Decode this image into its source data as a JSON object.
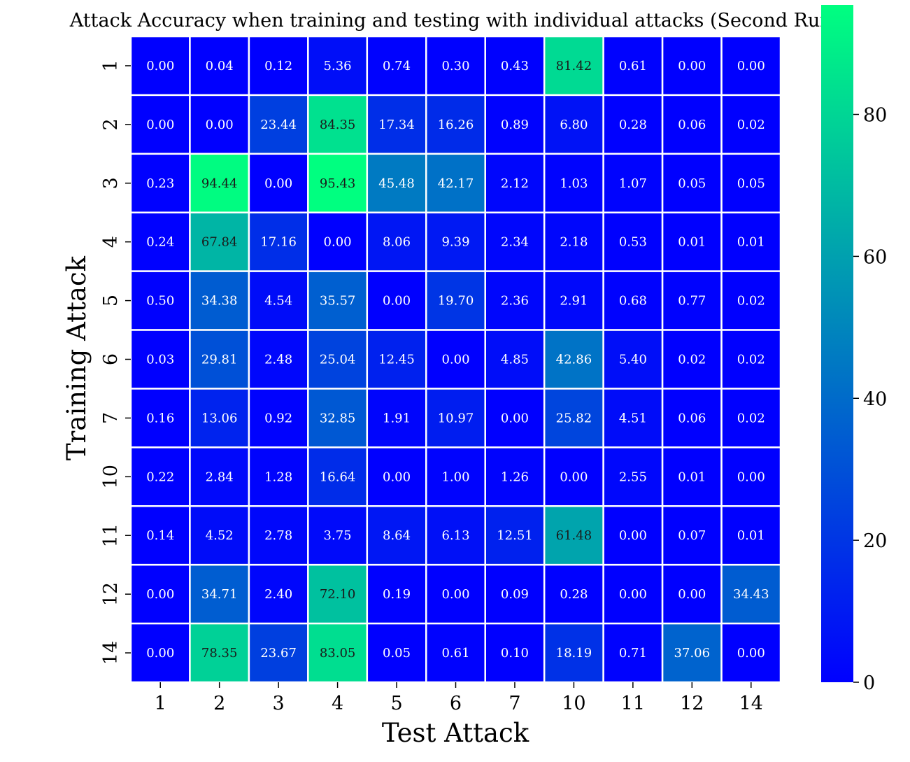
{
  "chart_data": {
    "type": "heatmap",
    "title": "Attack Accuracy when training and testing with individual attacks (Second Run)",
    "xlabel": "Test Attack",
    "ylabel": "Training Attack",
    "x_categories": [
      "1",
      "2",
      "3",
      "4",
      "5",
      "6",
      "7",
      "10",
      "11",
      "12",
      "14"
    ],
    "y_categories": [
      "1",
      "2",
      "3",
      "4",
      "5",
      "6",
      "7",
      "10",
      "11",
      "12",
      "14"
    ],
    "values": [
      [
        "0.00",
        "0.04",
        "0.12",
        "5.36",
        "0.74",
        "0.30",
        "0.43",
        "81.42",
        "0.61",
        "0.00",
        "0.00"
      ],
      [
        "0.00",
        "0.00",
        "23.44",
        "84.35",
        "17.34",
        "16.26",
        "0.89",
        "6.80",
        "0.28",
        "0.06",
        "0.02"
      ],
      [
        "0.23",
        "94.44",
        "0.00",
        "95.43",
        "45.48",
        "42.17",
        "2.12",
        "1.03",
        "1.07",
        "0.05",
        "0.05"
      ],
      [
        "0.24",
        "67.84",
        "17.16",
        "0.00",
        "8.06",
        "9.39",
        "2.34",
        "2.18",
        "0.53",
        "0.01",
        "0.01"
      ],
      [
        "0.50",
        "34.38",
        "4.54",
        "35.57",
        "0.00",
        "19.70",
        "2.36",
        "2.91",
        "0.68",
        "0.77",
        "0.02"
      ],
      [
        "0.03",
        "29.81",
        "2.48",
        "25.04",
        "12.45",
        "0.00",
        "4.85",
        "42.86",
        "5.40",
        "0.02",
        "0.02"
      ],
      [
        "0.16",
        "13.06",
        "0.92",
        "32.85",
        "1.91",
        "10.97",
        "0.00",
        "25.82",
        "4.51",
        "0.06",
        "0.02"
      ],
      [
        "0.22",
        "2.84",
        "1.28",
        "16.64",
        "0.00",
        "1.00",
        "1.26",
        "0.00",
        "2.55",
        "0.01",
        "0.00"
      ],
      [
        "0.14",
        "4.52",
        "2.78",
        "3.75",
        "8.64",
        "6.13",
        "12.51",
        "61.48",
        "0.00",
        "0.07",
        "0.01"
      ],
      [
        "0.00",
        "34.71",
        "2.40",
        "72.10",
        "0.19",
        "0.00",
        "0.09",
        "0.28",
        "0.00",
        "0.00",
        "34.43"
      ],
      [
        "0.00",
        "78.35",
        "23.67",
        "83.05",
        "0.05",
        "0.61",
        "0.10",
        "18.19",
        "0.71",
        "37.06",
        "0.00"
      ]
    ],
    "colorbar": {
      "ticks": [
        "0",
        "20",
        "40",
        "60",
        "80"
      ],
      "min": 0,
      "max": 95.43,
      "colormap": "winter",
      "color_low": "#0000ff",
      "color_high": "#00ff80"
    },
    "grid": true,
    "cell_border_color": "#ffffff"
  }
}
